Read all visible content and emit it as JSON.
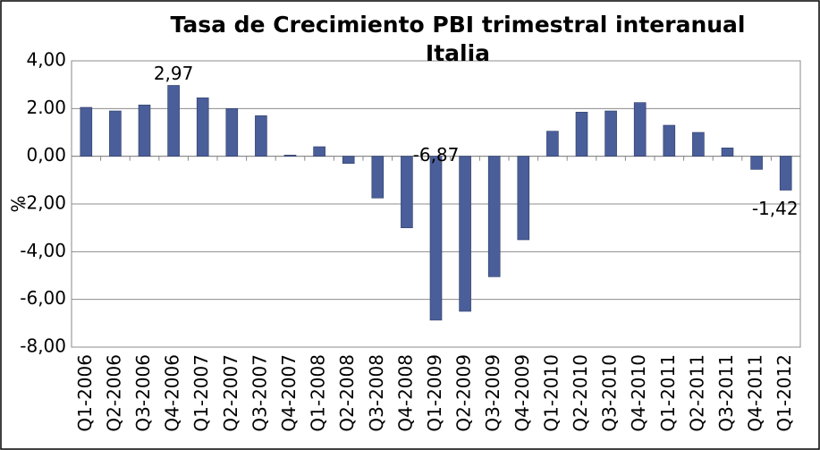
{
  "chart_data": {
    "type": "bar",
    "title": "Tasa de Crecimiento PBI trimestral interanual Italia",
    "y_label": "%",
    "categories": [
      "Q1-2006",
      "Q2-2006",
      "Q3-2006",
      "Q4-2006",
      "Q1-2007",
      "Q2-2007",
      "Q3-2007",
      "Q4-2007",
      "Q1-2008",
      "Q2-2008",
      "Q3-2008",
      "Q4-2008",
      "Q1-2009",
      "Q2-2009",
      "Q3-2009",
      "Q4-2009",
      "Q1-2010",
      "Q2-2010",
      "Q3-2010",
      "Q4-2010",
      "Q1-2011",
      "Q2-2011",
      "Q3-2011",
      "Q4-2011",
      "Q1-2012"
    ],
    "values": [
      2.05,
      1.9,
      2.15,
      2.97,
      2.45,
      2.0,
      1.7,
      0.05,
      0.4,
      -0.3,
      -1.75,
      -3.0,
      -6.87,
      -6.5,
      -5.05,
      -3.5,
      1.05,
      1.85,
      1.9,
      2.25,
      1.3,
      1.0,
      0.35,
      -0.55,
      -1.42
    ],
    "value_labels": [
      null,
      null,
      null,
      "2,97",
      null,
      null,
      null,
      null,
      null,
      null,
      null,
      null,
      "-6,87",
      null,
      null,
      null,
      null,
      null,
      null,
      null,
      null,
      null,
      null,
      null,
      "-1,42"
    ],
    "color": "#4a5e9a",
    "ylim": [
      -8,
      4
    ],
    "yticks": [
      {
        "value": -8,
        "label": "-8,00"
      },
      {
        "value": -6,
        "label": "-6,00"
      },
      {
        "value": -4,
        "label": "-4,00"
      },
      {
        "value": -2,
        "label": "-2,00"
      },
      {
        "value": 0,
        "label": "0,00"
      },
      {
        "value": 2,
        "label": "2.00"
      },
      {
        "value": 4,
        "label": "4,00"
      }
    ],
    "grid": true
  }
}
